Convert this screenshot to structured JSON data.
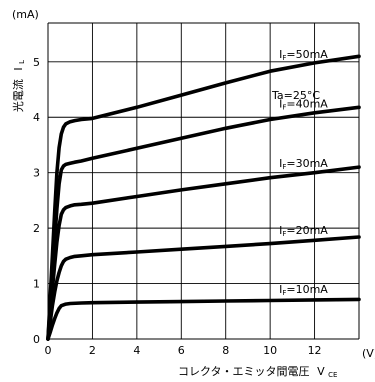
{
  "chart_data": {
    "type": "line",
    "y_unit": "(mA)",
    "x_unit": "(V)",
    "ylabel_main": "光電流",
    "ylabel_symbol": "I",
    "ylabel_subscript": "L",
    "xlabel_main": "コレクタ・エミッタ間電圧",
    "xlabel_symbol": "V",
    "xlabel_subscript": "CE",
    "condition": "Ta=25°C",
    "xlim": [
      0,
      14
    ],
    "ylim": [
      0,
      5.7
    ],
    "x_ticks": [
      "0",
      "2",
      "4",
      "6",
      "8",
      "10",
      "12"
    ],
    "y_ticks": [
      "0",
      "1",
      "2",
      "3",
      "4",
      "5"
    ],
    "grid": true,
    "series": [
      {
        "name": "IF=10mA",
        "prefix": "I",
        "sub": "F",
        "value_label": "=10mA",
        "x": [
          0,
          0.1,
          0.2,
          0.3,
          0.4,
          0.5,
          0.6,
          0.8,
          1.0,
          1.5,
          2,
          4,
          6,
          8,
          10,
          12,
          14
        ],
        "y": [
          0,
          0.12,
          0.25,
          0.37,
          0.47,
          0.55,
          0.6,
          0.63,
          0.64,
          0.65,
          0.655,
          0.665,
          0.675,
          0.685,
          0.695,
          0.705,
          0.715
        ]
      },
      {
        "name": "IF=20mA",
        "prefix": "I",
        "sub": "F",
        "value_label": "=20mA",
        "x": [
          0,
          0.1,
          0.2,
          0.3,
          0.4,
          0.5,
          0.6,
          0.7,
          0.8,
          1.0,
          1.2,
          1.5,
          2,
          4,
          6,
          8,
          10,
          12,
          14
        ],
        "y": [
          0,
          0.3,
          0.6,
          0.85,
          1.05,
          1.2,
          1.32,
          1.4,
          1.44,
          1.47,
          1.49,
          1.5,
          1.52,
          1.57,
          1.62,
          1.67,
          1.72,
          1.78,
          1.84
        ]
      },
      {
        "name": "IF=30mA",
        "prefix": "I",
        "sub": "F",
        "value_label": "=30mA",
        "x": [
          0,
          0.1,
          0.2,
          0.3,
          0.4,
          0.5,
          0.6,
          0.7,
          0.8,
          1.0,
          1.2,
          1.5,
          2,
          4,
          6,
          8,
          10,
          12,
          14
        ],
        "y": [
          0,
          0.45,
          0.9,
          1.35,
          1.75,
          2.05,
          2.25,
          2.33,
          2.37,
          2.4,
          2.42,
          2.43,
          2.45,
          2.57,
          2.69,
          2.8,
          2.91,
          3.0,
          3.1
        ]
      },
      {
        "name": "IF=40mA",
        "prefix": "I",
        "sub": "F",
        "value_label": "=40mA",
        "x": [
          0,
          0.1,
          0.2,
          0.3,
          0.4,
          0.5,
          0.6,
          0.7,
          0.8,
          1.0,
          1.2,
          1.5,
          2,
          4,
          6,
          8,
          10,
          12,
          14
        ],
        "y": [
          0,
          0.6,
          1.2,
          1.8,
          2.35,
          2.8,
          3.05,
          3.12,
          3.15,
          3.17,
          3.19,
          3.21,
          3.26,
          3.44,
          3.62,
          3.8,
          3.96,
          4.08,
          4.18
        ]
      },
      {
        "name": "IF=50mA",
        "prefix": "I",
        "sub": "F",
        "value_label": "=50mA",
        "x": [
          0,
          0.1,
          0.2,
          0.3,
          0.4,
          0.5,
          0.6,
          0.7,
          0.8,
          1.0,
          1.2,
          1.5,
          2,
          4,
          6,
          8,
          10,
          12,
          14
        ],
        "y": [
          0,
          0.75,
          1.5,
          2.3,
          3.0,
          3.45,
          3.7,
          3.82,
          3.88,
          3.92,
          3.94,
          3.96,
          3.98,
          4.18,
          4.4,
          4.62,
          4.83,
          4.98,
          5.1
        ]
      }
    ]
  }
}
